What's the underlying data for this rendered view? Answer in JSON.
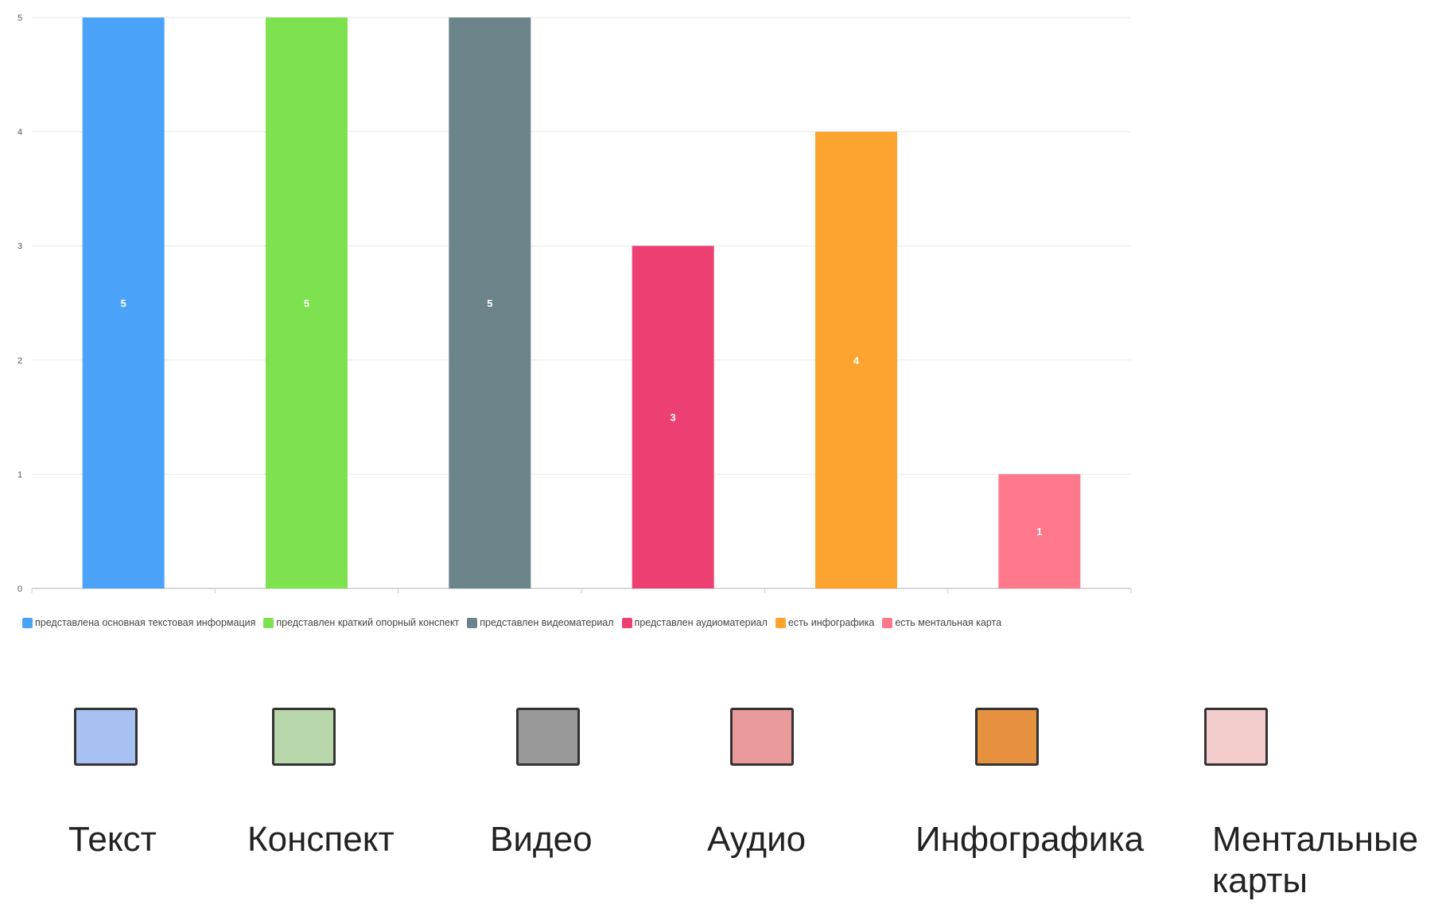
{
  "chart_data": {
    "type": "bar",
    "categories": [
      "представлена основная текстовая информация",
      "представлен краткий опорный конспект",
      "представлен видеоматериал",
      "представлен аудиоматериал",
      "есть инфографика",
      "есть ментальная карта"
    ],
    "values": [
      5,
      5,
      5,
      3,
      4,
      1
    ],
    "colors": [
      "#4aa3f8",
      "#7ee14f",
      "#6b848a",
      "#ec4073",
      "#fda330",
      "#ff788b"
    ],
    "ylim": [
      0,
      5
    ],
    "yticks": [
      "0",
      "1",
      "2",
      "3",
      "4",
      "5"
    ],
    "grid": true,
    "legend_position": "bottom",
    "data_labels": [
      "5",
      "5",
      "5",
      "3",
      "4",
      "1"
    ]
  },
  "cards": [
    {
      "label": "Текст",
      "color": "#a7c2f2"
    },
    {
      "label": "Конспект",
      "color": "#b7d6a9"
    },
    {
      "label": "Видео",
      "color": "#999999"
    },
    {
      "label": "Аудио",
      "color": "#ea9a9a"
    },
    {
      "label": "Инфографика",
      "color": "#e69140"
    },
    {
      "label": "Ментальные карты",
      "color": "#f3cccc"
    }
  ]
}
